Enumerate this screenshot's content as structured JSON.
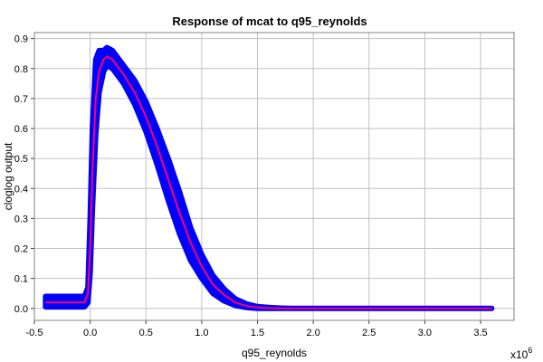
{
  "chart_data": {
    "type": "line",
    "title": "Response of mcat to q95_reynolds",
    "xlabel": "q95_reynolds",
    "ylabel": "cloglog output",
    "x_multiplier": "x10",
    "x_multiplier_exponent": "6",
    "xlim": [
      -0.5,
      3.8
    ],
    "ylim": [
      -0.04,
      0.92
    ],
    "xticks": [
      -0.5,
      0.0,
      0.5,
      1.0,
      1.5,
      2.0,
      2.5,
      3.0,
      3.5
    ],
    "xtick_labels": [
      "-0.5",
      "0.0",
      "0.5",
      "1.0",
      "1.5",
      "2.0",
      "2.5",
      "3.0",
      "3.5"
    ],
    "yticks": [
      0.0,
      0.1,
      0.2,
      0.3,
      0.4,
      0.5,
      0.6,
      0.7,
      0.8,
      0.9
    ],
    "ytick_labels": [
      "0.0",
      "0.1",
      "0.2",
      "0.3",
      "0.4",
      "0.5",
      "0.6",
      "0.7",
      "0.8",
      "0.9"
    ],
    "grid": true,
    "colors": {
      "band": "#0000ff",
      "mean": "#ff0066"
    },
    "series": [
      {
        "role": "mean",
        "x": [
          -0.4,
          -0.05,
          -0.02,
          0.0,
          0.02,
          0.05,
          0.08,
          0.12,
          0.15,
          0.2,
          0.3,
          0.4,
          0.5,
          0.6,
          0.7,
          0.8,
          0.9,
          1.0,
          1.1,
          1.2,
          1.3,
          1.4,
          1.5,
          1.6,
          1.7,
          1.8,
          2.0,
          2.5,
          3.0,
          3.6
        ],
        "y": [
          0.02,
          0.02,
          0.05,
          0.2,
          0.45,
          0.7,
          0.79,
          0.83,
          0.84,
          0.83,
          0.78,
          0.72,
          0.64,
          0.54,
          0.43,
          0.32,
          0.22,
          0.14,
          0.08,
          0.045,
          0.02,
          0.008,
          0.003,
          0.001,
          0.0,
          0.0,
          0.0,
          0.0,
          0.0,
          0.0
        ]
      },
      {
        "role": "band_upper",
        "x": [
          -0.4,
          -0.05,
          -0.02,
          0.0,
          0.02,
          0.05,
          0.08,
          0.12,
          0.15,
          0.2,
          0.3,
          0.4,
          0.5,
          0.6,
          0.7,
          0.8,
          0.9,
          1.0,
          1.1,
          1.2,
          1.3,
          1.4,
          1.5,
          1.6,
          1.7,
          1.8,
          2.0,
          2.5,
          3.0,
          3.6
        ],
        "y": [
          0.04,
          0.04,
          0.07,
          0.3,
          0.6,
          0.83,
          0.86,
          0.86,
          0.87,
          0.86,
          0.81,
          0.76,
          0.69,
          0.6,
          0.5,
          0.39,
          0.27,
          0.18,
          0.11,
          0.065,
          0.032,
          0.015,
          0.006,
          0.003,
          0.001,
          0.0,
          0.0,
          0.0,
          0.0,
          0.0
        ]
      },
      {
        "role": "band_lower",
        "x": [
          -0.4,
          -0.05,
          -0.02,
          0.0,
          0.02,
          0.05,
          0.08,
          0.12,
          0.15,
          0.2,
          0.3,
          0.4,
          0.5,
          0.6,
          0.7,
          0.8,
          0.9,
          1.0,
          1.1,
          1.2,
          1.3,
          1.4,
          1.5,
          1.6,
          1.7,
          1.8,
          2.0,
          2.5,
          3.0,
          3.6
        ],
        "y": [
          0.005,
          0.005,
          0.02,
          0.12,
          0.33,
          0.58,
          0.72,
          0.79,
          0.81,
          0.8,
          0.75,
          0.68,
          0.59,
          0.48,
          0.36,
          0.25,
          0.16,
          0.1,
          0.05,
          0.025,
          0.01,
          0.003,
          0.0,
          0.0,
          0.0,
          0.0,
          0.0,
          0.0,
          0.0,
          0.0
        ]
      }
    ]
  }
}
